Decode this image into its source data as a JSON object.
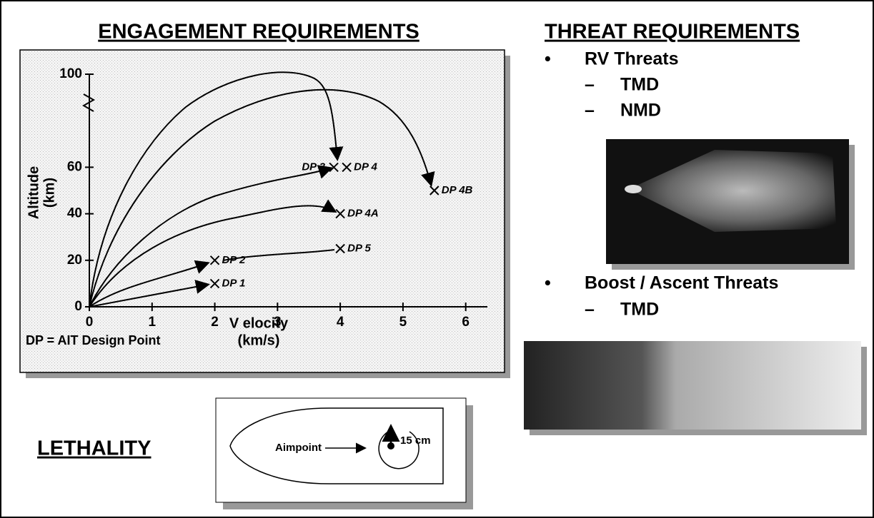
{
  "engagement": {
    "title": "ENGAGEMENT REQUIREMENTS"
  },
  "chart_data": {
    "type": "scatter",
    "x_label": [
      "V elocity",
      "(km/s)"
    ],
    "y_label": [
      "Altitude",
      "(km)"
    ],
    "note": "DP = AIT Design Point",
    "point_labels": [
      "DP 1",
      "DP 2",
      "DP 3",
      "DP 4",
      "DP 4A",
      "DP 4B",
      "DP 5"
    ],
    "x": [
      2,
      2,
      4,
      4,
      4,
      5.5,
      4
    ],
    "y": [
      10,
      20,
      60,
      60,
      40,
      50,
      25
    ],
    "xlim": [
      0,
      6.3
    ],
    "ylim": [
      0,
      100
    ],
    "xticks": [
      0,
      1,
      2,
      3,
      4,
      5,
      6
    ],
    "yticks": [
      0,
      20,
      40,
      60,
      100
    ]
  },
  "threats": {
    "title": "THREAT REQUIREMENTS",
    "items": [
      {
        "label": "RV Threats",
        "sub": [
          "TMD",
          "NMD"
        ]
      },
      {
        "label": "Boost / Ascent Threats",
        "sub": [
          "TMD"
        ]
      }
    ]
  },
  "lethality": {
    "title": "LETHALITY",
    "aimpoint": "Aimpoint",
    "radius": "15 cm"
  }
}
